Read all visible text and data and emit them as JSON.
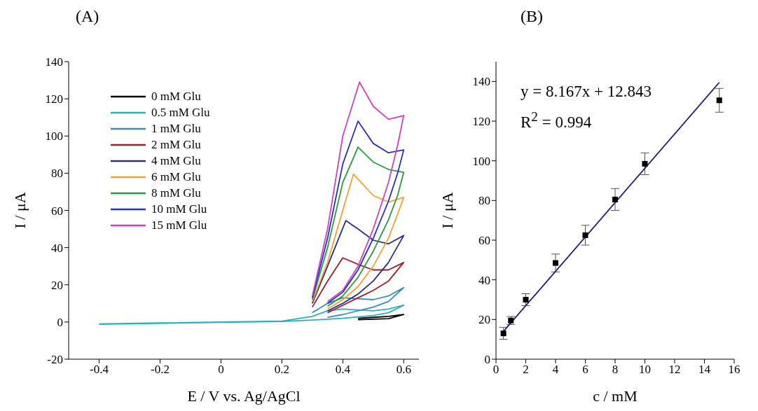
{
  "chart_data": [
    {
      "type": "line",
      "title": "(A)",
      "xlabel": "E / V vs. Ag/AgCl",
      "ylabel": "I / μA",
      "xlim": [
        -0.5,
        0.65
      ],
      "xticks": [
        -0.4,
        -0.2,
        0,
        0.2,
        0.4,
        0.6
      ],
      "ylim": [
        -20,
        140
      ],
      "yticks": [
        -20,
        0,
        20,
        40,
        60,
        80,
        100,
        120,
        140
      ],
      "legend": "top left",
      "series": [
        {
          "name": "0 mM Glu",
          "color": "#000000",
          "x": [
            0.45,
            0.5,
            0.55,
            0.6,
            0.55,
            0.5,
            0.45
          ],
          "values": [
            2,
            2.5,
            3,
            4,
            1.8,
            1.5,
            1.2
          ]
        },
        {
          "name": "0.5 mM Glu",
          "color": "#2ab0b8",
          "x": [
            -0.4,
            -0.2,
            0,
            0.2,
            0.3,
            0.35,
            0.4,
            0.45,
            0.5,
            0.55,
            0.6,
            0.55,
            0.5,
            0.4,
            0.3,
            0.2,
            0,
            -0.4
          ],
          "values": [
            -1,
            -0.5,
            0,
            0.5,
            3,
            6,
            7,
            6.5,
            6,
            7,
            9,
            5,
            3.5,
            2,
            1,
            0.3,
            -0.2,
            -1.2
          ]
        },
        {
          "name": "1 mM Glu",
          "color": "#3a8cc0",
          "x": [
            0.3,
            0.35,
            0.4,
            0.45,
            0.5,
            0.55,
            0.6,
            0.55,
            0.5,
            0.4,
            0.35
          ],
          "values": [
            5,
            10,
            13,
            12.5,
            12,
            14,
            18.5,
            11,
            8,
            4,
            2.5
          ]
        },
        {
          "name": "2 mM Glu",
          "color": "#a01c2c",
          "x": [
            0.3,
            0.35,
            0.4,
            0.45,
            0.5,
            0.55,
            0.6,
            0.55,
            0.5,
            0.45,
            0.4,
            0.35
          ],
          "values": [
            8,
            22,
            34.5,
            31,
            28,
            28,
            32,
            22,
            17,
            13,
            9,
            5
          ]
        },
        {
          "name": "4 mM Glu",
          "color": "#2c2c8c",
          "x": [
            0.3,
            0.35,
            0.41,
            0.45,
            0.5,
            0.55,
            0.6,
            0.55,
            0.5,
            0.45,
            0.4,
            0.35
          ],
          "values": [
            10,
            30,
            54.5,
            50,
            44,
            42,
            46.5,
            32,
            22,
            15,
            10,
            6
          ]
        },
        {
          "name": "6 mM Glu",
          "color": "#f5a030",
          "x": [
            0.3,
            0.35,
            0.4,
            0.435,
            0.5,
            0.55,
            0.6,
            0.58,
            0.55,
            0.5,
            0.45,
            0.4,
            0.35
          ],
          "values": [
            11,
            32,
            60,
            79.5,
            68,
            64.5,
            67,
            58,
            45,
            30,
            19,
            12,
            7
          ]
        },
        {
          "name": "8 mM Glu",
          "color": "#2a9a40",
          "x": [
            0.3,
            0.35,
            0.4,
            0.45,
            0.5,
            0.55,
            0.6,
            0.58,
            0.55,
            0.5,
            0.45,
            0.4,
            0.35
          ],
          "values": [
            12,
            40,
            75,
            94,
            86,
            82,
            80.5,
            68,
            55,
            38,
            24,
            14,
            8.5
          ]
        },
        {
          "name": "10 mM Glu",
          "color": "#2830c0",
          "x": [
            0.3,
            0.35,
            0.4,
            0.45,
            0.5,
            0.55,
            0.6,
            0.58,
            0.55,
            0.5,
            0.45,
            0.4,
            0.35
          ],
          "values": [
            13,
            45,
            85,
            108,
            96,
            91,
            92.5,
            80,
            65,
            45,
            28,
            16,
            10
          ]
        },
        {
          "name": "15 mM Glu",
          "color": "#d040c0",
          "x": [
            0.3,
            0.35,
            0.4,
            0.455,
            0.5,
            0.55,
            0.6,
            0.58,
            0.55,
            0.5,
            0.45,
            0.4,
            0.35
          ],
          "values": [
            14,
            50,
            100,
            129,
            116,
            109,
            111,
            95,
            75,
            50,
            30,
            17,
            11
          ]
        }
      ]
    },
    {
      "type": "scatter",
      "title": "(B)",
      "xlabel": "c / mM",
      "ylabel": "I / μA",
      "xlim": [
        0,
        16
      ],
      "xticks": [
        0,
        2,
        4,
        6,
        8,
        10,
        12,
        14,
        16
      ],
      "ylim": [
        0,
        150
      ],
      "yticks": [
        0,
        20,
        40,
        60,
        80,
        100,
        120,
        140
      ],
      "annotations": [
        "y = 8.167x + 12.843",
        "R$^{2}$ = 0.994"
      ],
      "series": [
        {
          "marker": "square",
          "color": "#000000",
          "x": [
            0.5,
            1,
            2,
            4,
            6,
            8,
            10,
            15
          ],
          "values": [
            13,
            19.5,
            30,
            48.5,
            62.5,
            80.5,
            98.5,
            130.5
          ],
          "errors": [
            3,
            2,
            3,
            4.5,
            5,
            5.5,
            5.5,
            6
          ]
        },
        {
          "type": "line",
          "color": "#1f1f7a",
          "x": [
            0.5,
            15
          ],
          "values": [
            14,
            139.5
          ]
        }
      ]
    }
  ]
}
